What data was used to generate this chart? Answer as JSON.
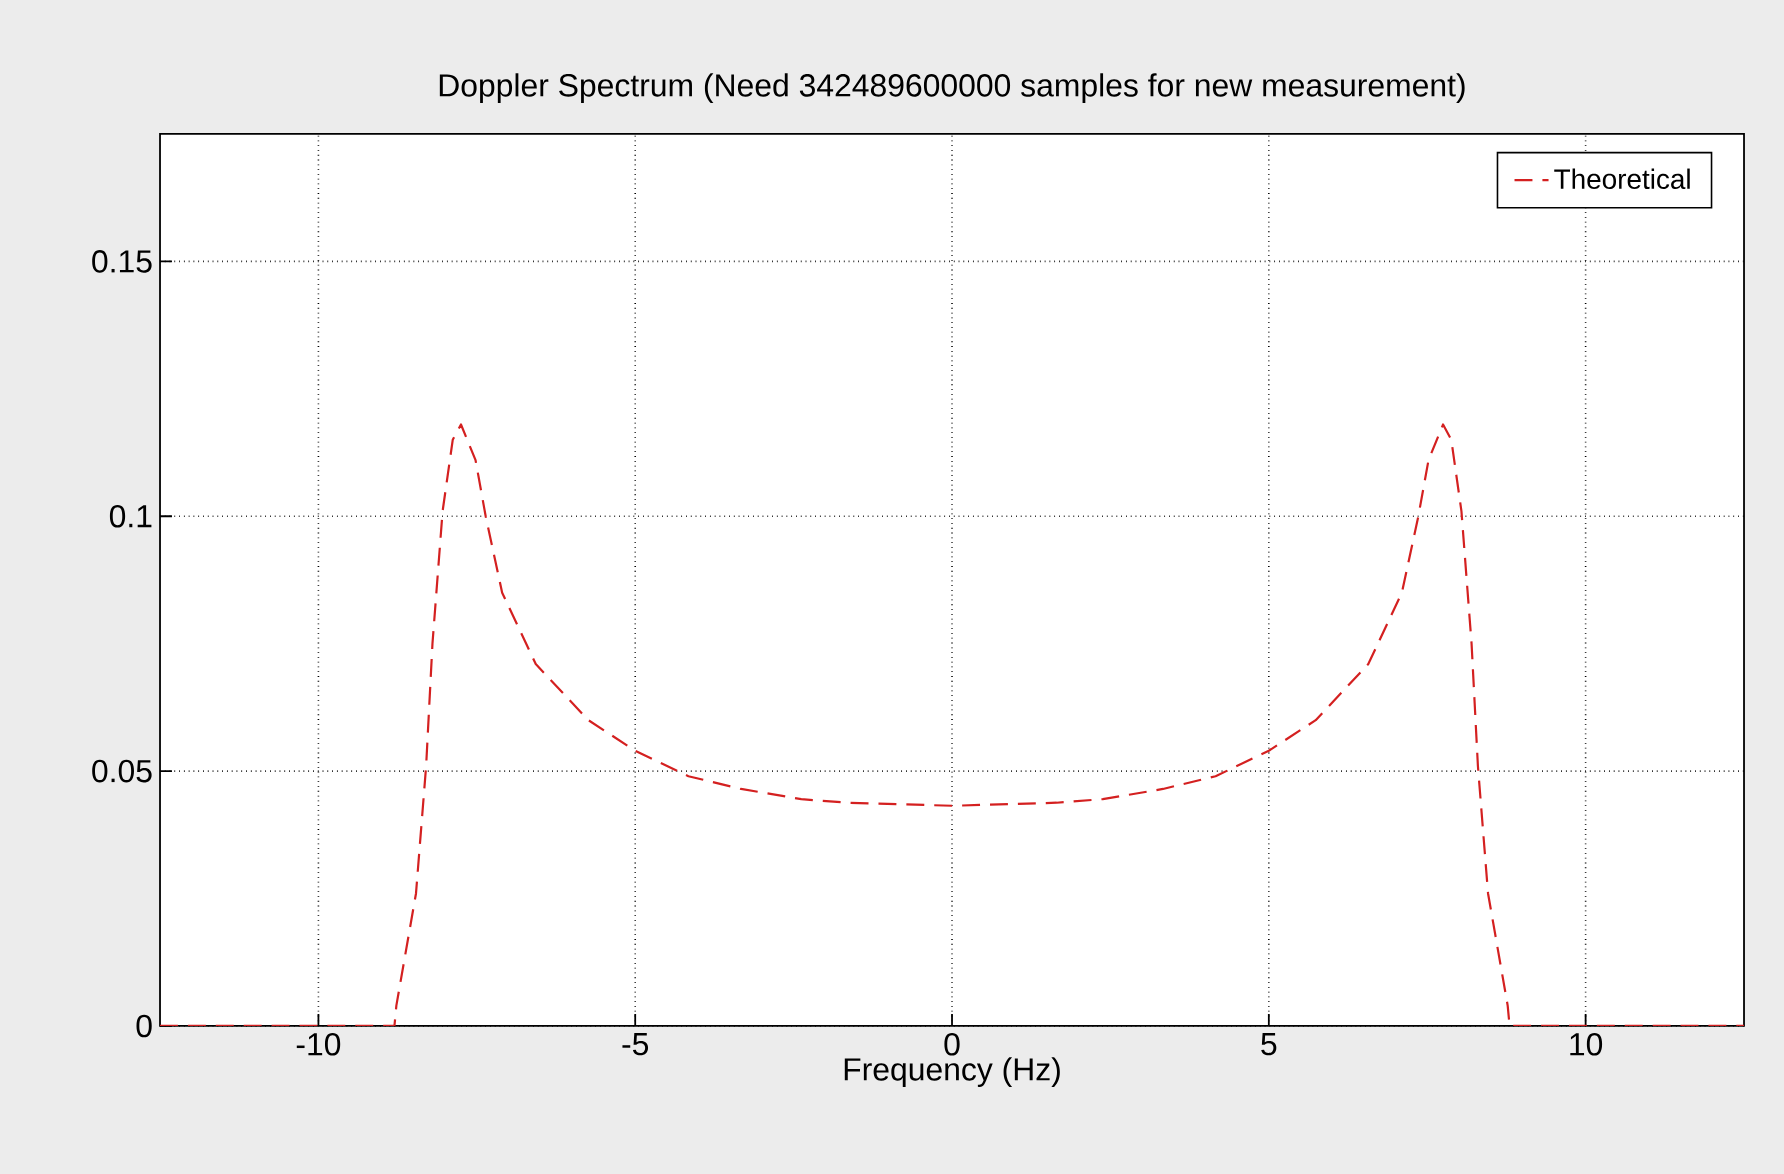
{
  "chart_data": {
    "type": "line",
    "title": "Doppler Spectrum (Need 342489600000 samples for new measurement)",
    "xlabel": "Frequency (Hz)",
    "xlim": [
      -12.5,
      12.5
    ],
    "ylim": [
      0,
      0.175
    ],
    "xticks": [
      -10,
      -5,
      0,
      5,
      10
    ],
    "yticks": [
      0,
      0.05,
      0.1,
      0.15
    ],
    "grid": true,
    "legend": "top right",
    "line_style": "dashed",
    "series": [
      {
        "name": "Theoretical",
        "color": "#d42020",
        "x": [
          -12.5,
          -8.8,
          -8.77,
          -8.46,
          -8.3,
          -8.2,
          -8.04,
          -7.88,
          -7.75,
          -7.52,
          -7.36,
          -7.1,
          -6.57,
          -5.74,
          -5.0,
          -4.16,
          -3.33,
          -2.38,
          -1.65,
          0,
          1.65,
          2.38,
          3.33,
          4.16,
          5.0,
          5.74,
          6.57,
          7.1,
          7.36,
          7.52,
          7.75,
          7.88,
          8.04,
          8.2,
          8.3,
          8.46,
          8.77,
          8.8,
          12.5
        ],
        "values": [
          0,
          0,
          0.004,
          0.026,
          0.051,
          0.075,
          0.101,
          0.115,
          0.118,
          0.111,
          0.1,
          0.085,
          0.071,
          0.06,
          0.054,
          0.049,
          0.0465,
          0.0445,
          0.0438,
          0.0432,
          0.0438,
          0.0445,
          0.0465,
          0.049,
          0.054,
          0.06,
          0.071,
          0.085,
          0.1,
          0.111,
          0.118,
          0.115,
          0.101,
          0.075,
          0.051,
          0.026,
          0.004,
          0,
          0
        ]
      }
    ]
  }
}
